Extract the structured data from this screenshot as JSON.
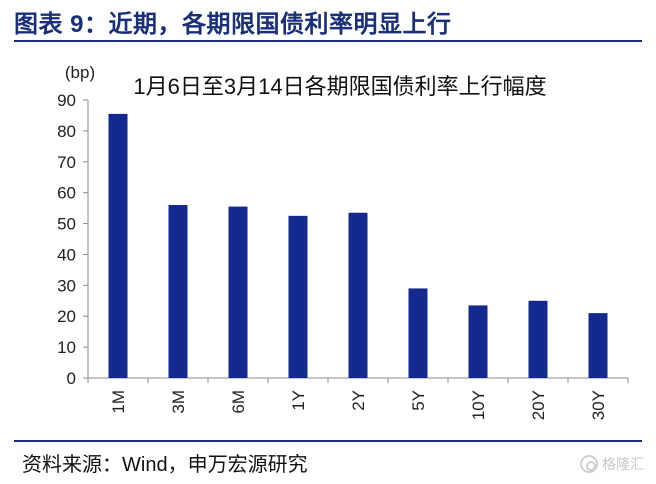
{
  "header": {
    "title": "图表 9：近期，各期限国债利率明显上行"
  },
  "footer": {
    "source": "资料来源：Wind，申万宏源研究"
  },
  "watermark": {
    "text": "格隆汇"
  },
  "colors": {
    "bar": "#14298f",
    "title": "#1a2f7a",
    "axis": "#8c8c8c"
  },
  "chart_data": {
    "type": "bar",
    "title": "1月6日至3月14日各期限国债利率上行幅度",
    "ylabel": "(bp)",
    "xlabel": "",
    "categories": [
      "1M",
      "3M",
      "6M",
      "1Y",
      "2Y",
      "5Y",
      "10Y",
      "20Y",
      "30Y"
    ],
    "values": [
      85.5,
      56,
      55.5,
      52.5,
      53.5,
      29,
      23.5,
      25,
      21
    ],
    "ylim": [
      0,
      90
    ],
    "yticks": [
      0,
      10,
      20,
      30,
      40,
      50,
      60,
      70,
      80,
      90
    ],
    "grid": false,
    "legend": "none"
  }
}
